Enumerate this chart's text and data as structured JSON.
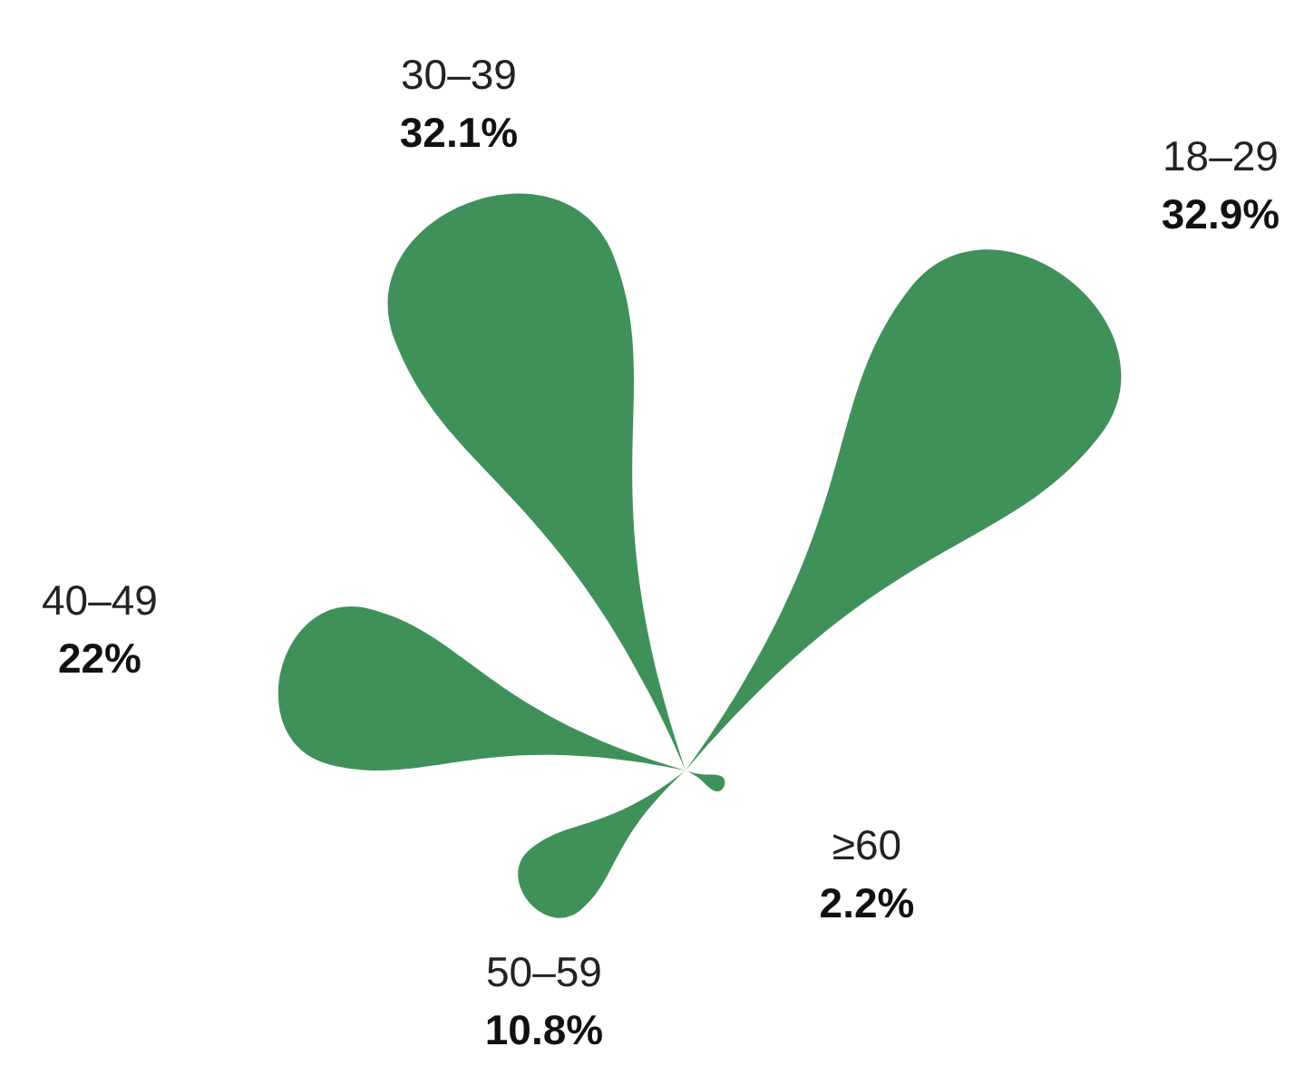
{
  "chart_data": {
    "type": "other",
    "categories": [
      "18–29",
      "30–39",
      "40–49",
      "50–59",
      "≥60"
    ],
    "values": [
      32.9,
      32.1,
      22,
      10.8,
      2.2
    ],
    "value_labels": [
      "32.9%",
      "32.1%",
      "22%",
      "10.8%",
      "2.2%"
    ],
    "color": "#3f9159"
  }
}
